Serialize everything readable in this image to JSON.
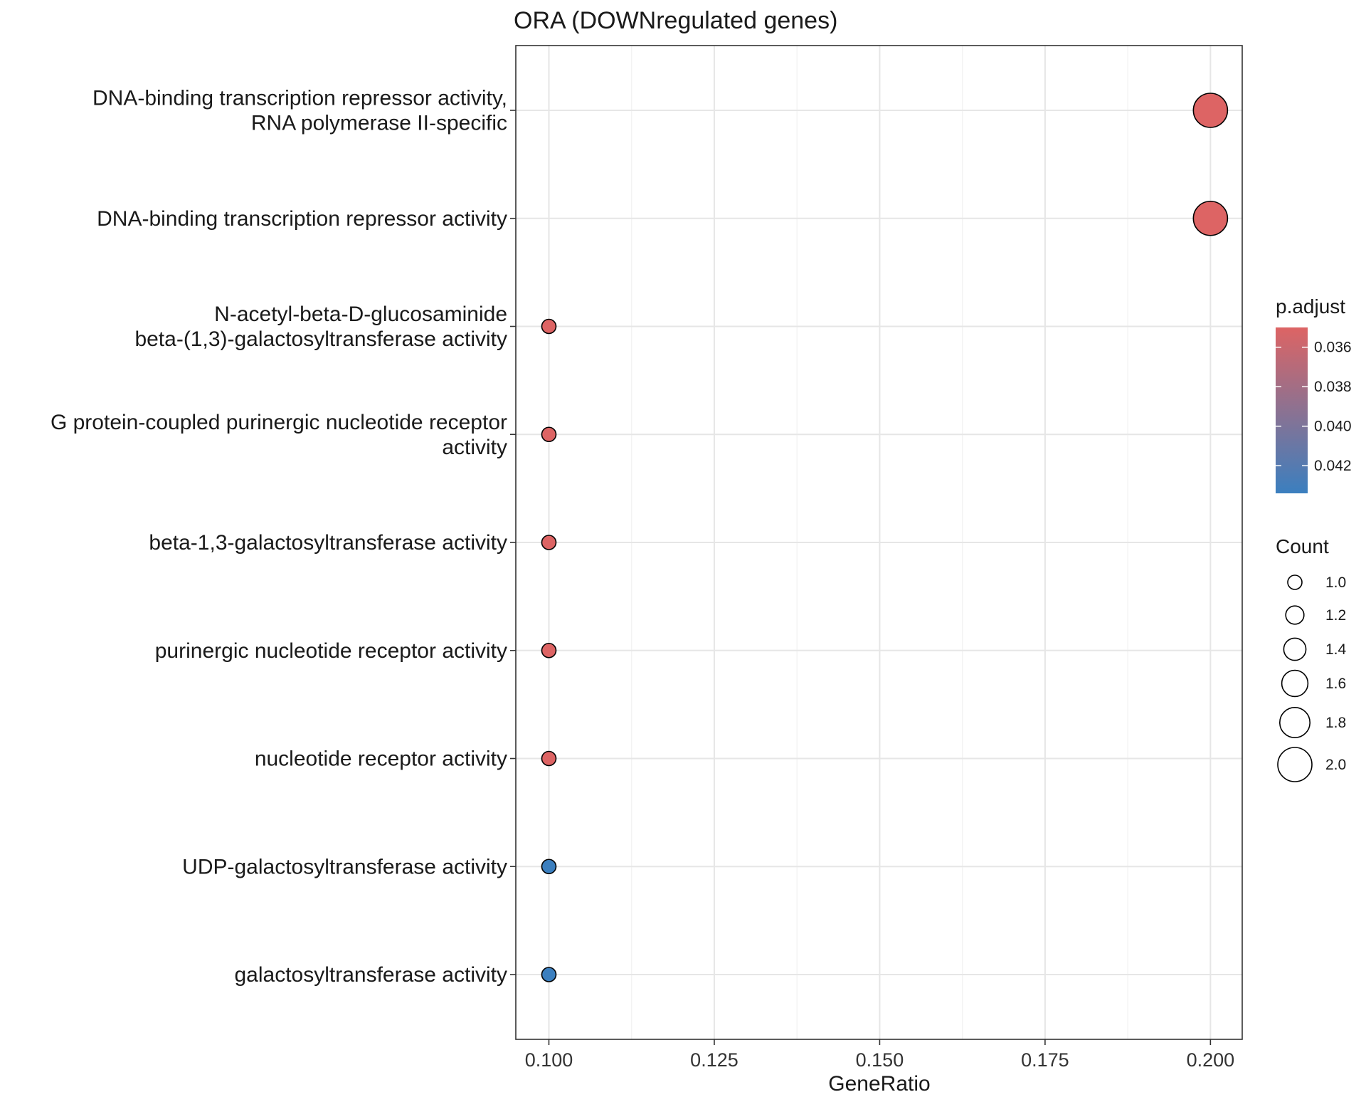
{
  "chart_data": {
    "type": "scatter",
    "title": "ORA (DOWNregulated genes)",
    "xlabel": "GeneRatio",
    "ylabel": "",
    "xlim": [
      0.095,
      0.2048
    ],
    "x_ticks": [
      "0.100",
      "0.125",
      "0.150",
      "0.175",
      "0.200"
    ],
    "grid": true,
    "categories": [
      "DNA-binding transcription repressor activity,\nRNA polymerase II-specific",
      "DNA-binding transcription repressor activity",
      "N-acetyl-beta-D-glucosaminide\nbeta-(1,3)-galactosyltransferase activity",
      "G protein-coupled purinergic nucleotide receptor\nactivity",
      "beta-1,3-galactosyltransferase activity",
      "purinergic nucleotide receptor activity",
      "nucleotide receptor activity",
      "UDP-galactosyltransferase activity",
      "galactosyltransferase activity"
    ],
    "points": [
      {
        "term": "DNA-binding transcription repressor activity,\nRNA polymerase II-specific",
        "GeneRatio": 0.2,
        "Count": 2,
        "p_adjust": 0.035
      },
      {
        "term": "DNA-binding transcription repressor activity",
        "GeneRatio": 0.2,
        "Count": 2,
        "p_adjust": 0.035
      },
      {
        "term": "N-acetyl-beta-D-glucosaminide\nbeta-(1,3)-galactosyltransferase activity",
        "GeneRatio": 0.1,
        "Count": 1,
        "p_adjust": 0.035
      },
      {
        "term": "G protein-coupled purinergic nucleotide receptor\nactivity",
        "GeneRatio": 0.1,
        "Count": 1,
        "p_adjust": 0.035
      },
      {
        "term": "beta-1,3-galactosyltransferase activity",
        "GeneRatio": 0.1,
        "Count": 1,
        "p_adjust": 0.035
      },
      {
        "term": "purinergic nucleotide receptor activity",
        "GeneRatio": 0.1,
        "Count": 1,
        "p_adjust": 0.035
      },
      {
        "term": "nucleotide receptor activity",
        "GeneRatio": 0.1,
        "Count": 1,
        "p_adjust": 0.035
      },
      {
        "term": "UDP-galactosyltransferase activity",
        "GeneRatio": 0.1,
        "Count": 1,
        "p_adjust": 0.0434
      },
      {
        "term": "galactosyltransferase activity",
        "GeneRatio": 0.1,
        "Count": 1,
        "p_adjust": 0.0434
      }
    ],
    "color_legend": {
      "title": "p.adjust",
      "ticks": [
        "0.036",
        "0.038",
        "0.040",
        "0.042"
      ],
      "range": [
        0.035,
        0.0434
      ],
      "low_color": "#dd6464",
      "high_color": "#3b7fbf"
    },
    "size_legend": {
      "title": "Count",
      "ticks": [
        "1.0",
        "1.2",
        "1.4",
        "1.6",
        "1.8",
        "2.0"
      ]
    }
  }
}
